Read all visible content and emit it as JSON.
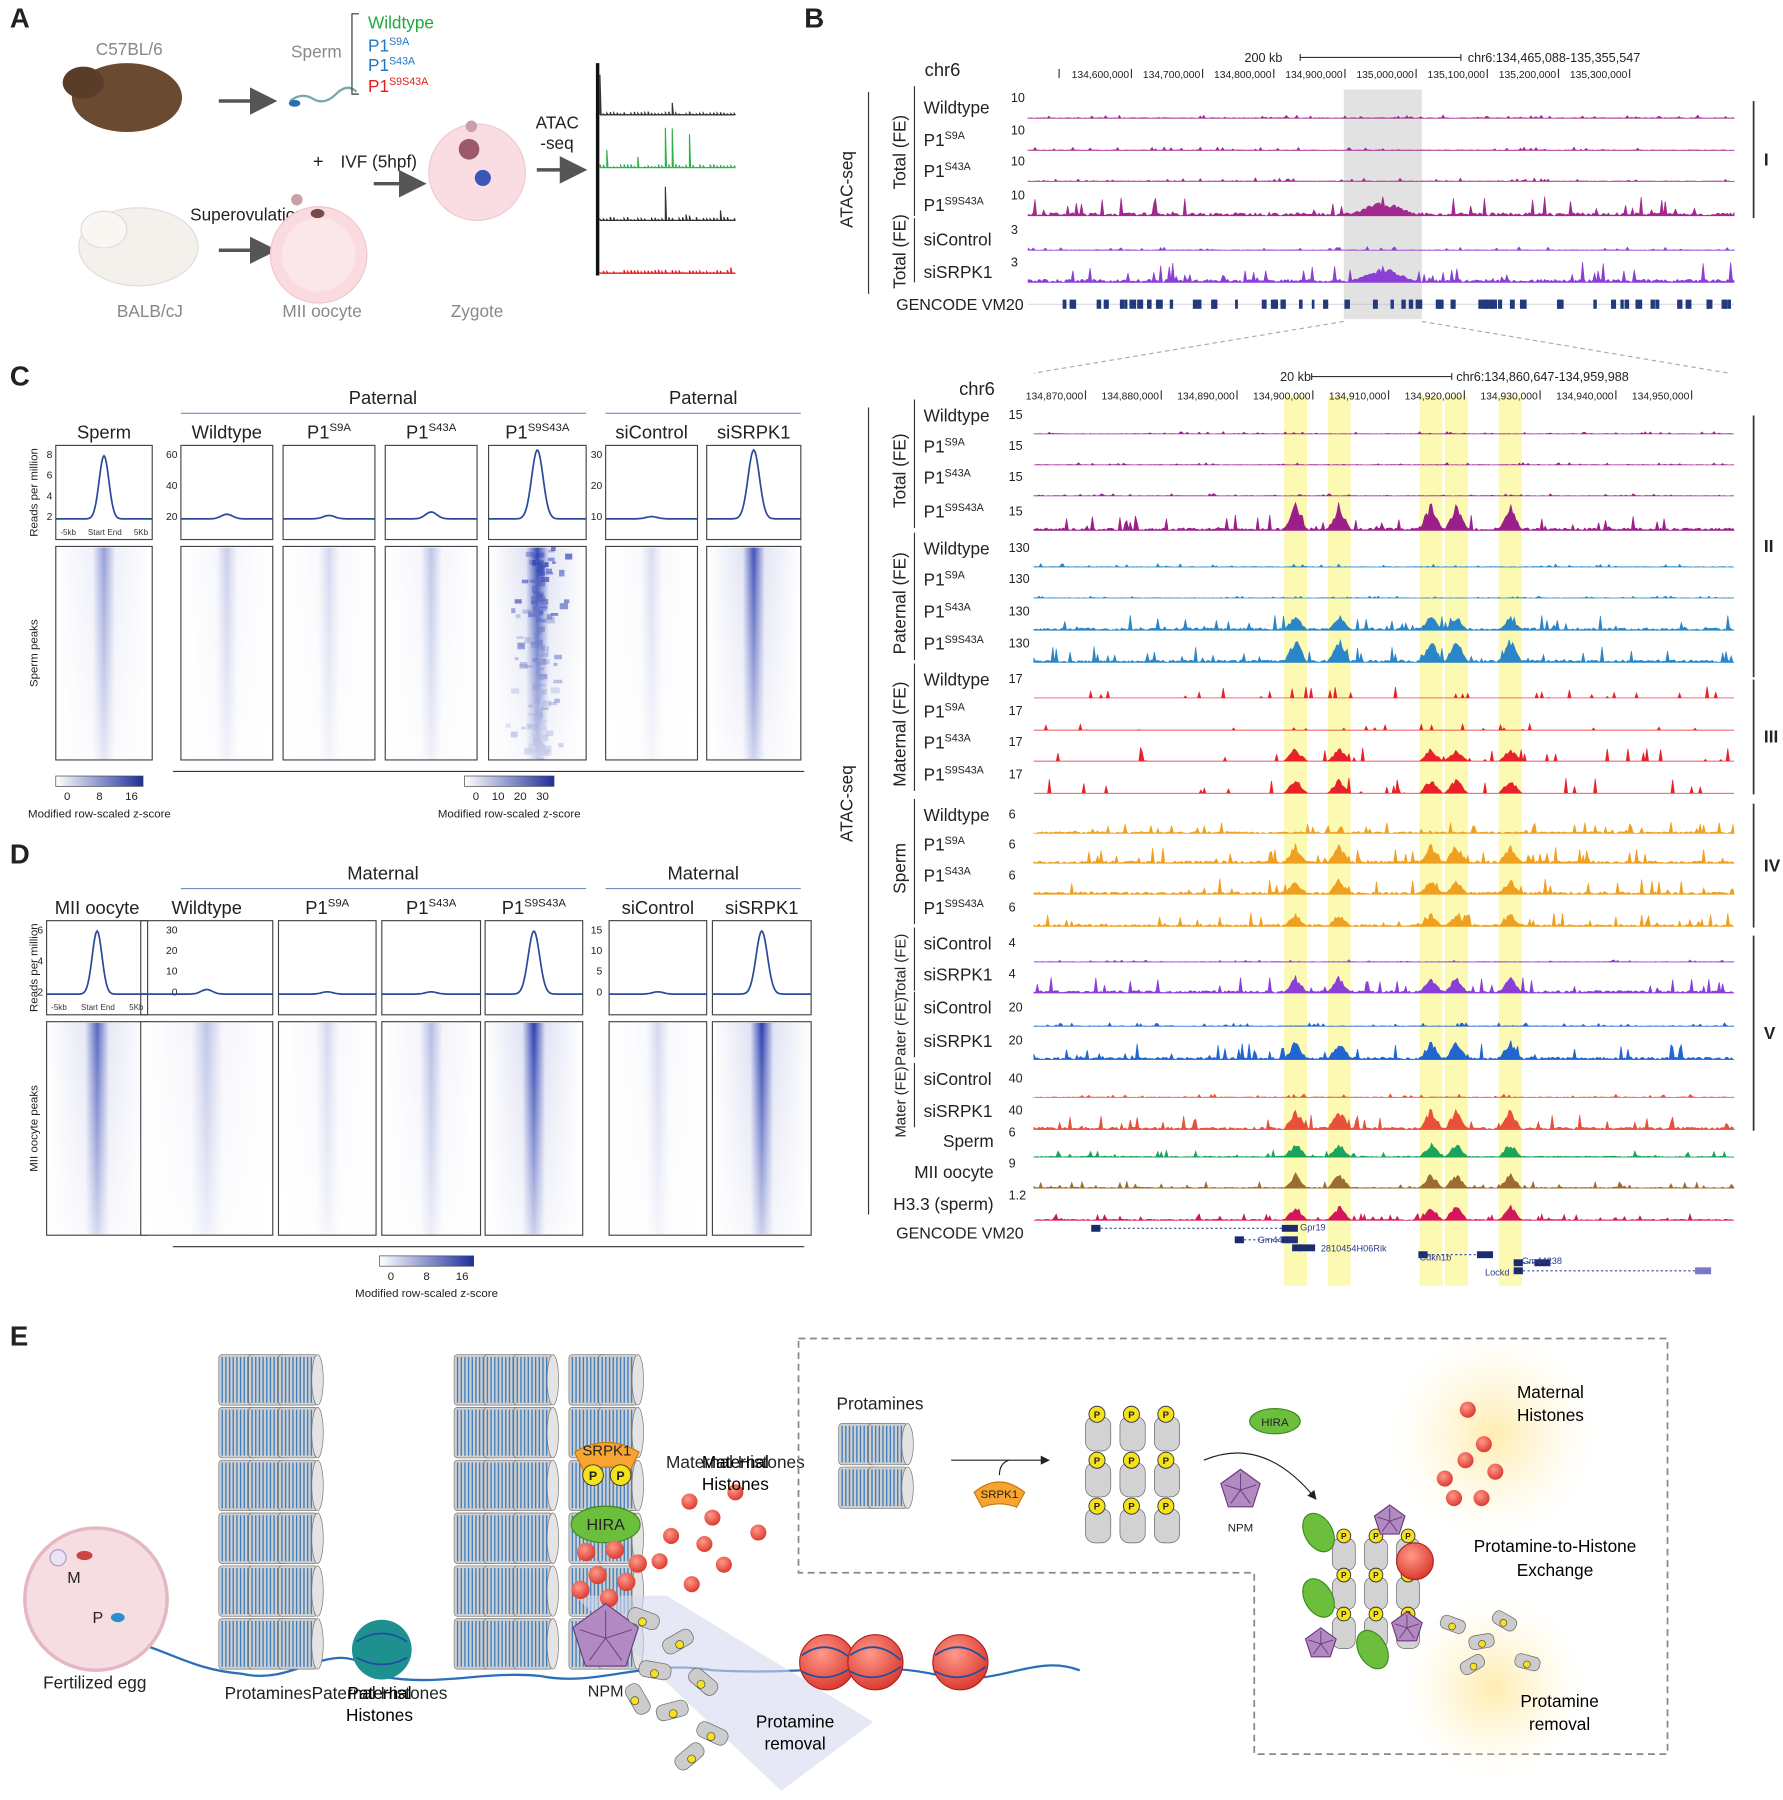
{
  "panel_labels": [
    "A",
    "B",
    "C",
    "D",
    "E"
  ],
  "panel_a": {
    "mouse_1": "C57BL/6",
    "sperm": "Sperm",
    "mouse_2": "BALB/cJ",
    "superovulation": "Superovulation",
    "oocyte": "MII oocyte",
    "zygote": "Zygote",
    "plus": "+",
    "ivf": "IVF (5hpf)",
    "atac": [
      "ATAC",
      "-seq"
    ],
    "genotypes": [
      {
        "text": "Wildtype"
      },
      {
        "text": "P1",
        "sup": "S9A"
      },
      {
        "text": "P1",
        "sup": "S43A"
      },
      {
        "text": "P1",
        "sup": "S9S43A"
      }
    ]
  },
  "panel_b": {
    "assay_top": "ATAC-seq",
    "assay_bottom": "ATAC-seq",
    "top": {
      "chrom": "chr6",
      "scale": "200 kb",
      "coords": "chr6:134,465,088-135,355,547",
      "ticks": [
        "134,600,000",
        "134,700,000",
        "134,800,000",
        "134,900,000",
        "135,000,000",
        "135,100,000",
        "135,200,000",
        "135,300,000"
      ],
      "groups": [
        {
          "label": "Total (FE)",
          "color": "#a3288f",
          "tracks": [
            {
              "name": {
                "text": "Wildtype"
              },
              "max": "10"
            },
            {
              "name": {
                "text": "P1",
                "sup": "S9A"
              },
              "max": "10"
            },
            {
              "name": {
                "text": "P1",
                "sup": "S43A"
              },
              "max": "10"
            },
            {
              "name": {
                "text": "P1",
                "sup": "S9S43A"
              },
              "max": "10"
            }
          ]
        },
        {
          "label": "Total (FE)",
          "color": "#8a3fd6",
          "tracks": [
            {
              "name": {
                "text": "siControl"
              },
              "max": "3"
            },
            {
              "name": {
                "text": "siSRPK1"
              },
              "max": "3"
            }
          ]
        }
      ],
      "roman": "I",
      "gencode": "GENCODE VM20"
    },
    "bottom": {
      "chrom": "chr6",
      "scale": "20 kb",
      "coords": "chr6:134,860,647-134,959,988",
      "ticks": [
        "134,870,000",
        "134,880,000",
        "134,890,000",
        "134,900,000",
        "134,910,000",
        "134,920,000",
        "134,930,000",
        "134,940,000",
        "134,950,000"
      ],
      "groups": [
        {
          "label": "Total (FE)",
          "color": "#9b1f8a",
          "tracks": [
            {
              "name": {
                "text": "Wildtype"
              },
              "max": "15"
            },
            {
              "name": {
                "text": "P1",
                "sup": "S9A"
              },
              "max": "15"
            },
            {
              "name": {
                "text": "P1",
                "sup": "S43A"
              },
              "max": "15"
            },
            {
              "name": {
                "text": "P1",
                "sup": "S9S43A"
              },
              "max": "15"
            }
          ]
        },
        {
          "label": "Paternal (FE)",
          "color": "#2a86c8",
          "tracks": [
            {
              "name": {
                "text": "Wildtype"
              },
              "max": "130"
            },
            {
              "name": {
                "text": "P1",
                "sup": "S9A"
              },
              "max": "130"
            },
            {
              "name": {
                "text": "P1",
                "sup": "S43A"
              },
              "max": "130"
            },
            {
              "name": {
                "text": "P1",
                "sup": "S9S43A"
              },
              "max": "130"
            }
          ]
        },
        {
          "label": "Maternal (FE)",
          "color": "#e8212a",
          "tracks": [
            {
              "name": {
                "text": "Wildtype"
              },
              "max": "17"
            },
            {
              "name": {
                "text": "P1",
                "sup": "S9A"
              },
              "max": "17"
            },
            {
              "name": {
                "text": "P1",
                "sup": "S43A"
              },
              "max": "17"
            },
            {
              "name": {
                "text": "P1",
                "sup": "S9S43A"
              },
              "max": "17"
            }
          ]
        },
        {
          "label": "Sperm",
          "color": "#f0a020",
          "tracks": [
            {
              "name": {
                "text": "Wildtype"
              },
              "max": "6"
            },
            {
              "name": {
                "text": "P1",
                "sup": "S9A"
              },
              "max": "6"
            },
            {
              "name": {
                "text": "P1",
                "sup": "S43A"
              },
              "max": "6"
            },
            {
              "name": {
                "text": "P1",
                "sup": "S9S43A"
              },
              "max": "6"
            }
          ]
        },
        {
          "label": "Total (FE)",
          "color": "#8a3fd6",
          "tracks": [
            {
              "name": {
                "text": "siControl"
              },
              "max": "4"
            },
            {
              "name": {
                "text": "siSRPK1"
              },
              "max": "4"
            }
          ]
        },
        {
          "label": "Pater (FE)",
          "color": "#2166d0",
          "tracks": [
            {
              "name": {
                "text": "siControl"
              },
              "max": "20"
            },
            {
              "name": {
                "text": "siSRPK1"
              },
              "max": "20"
            }
          ]
        },
        {
          "label": "Mater (FE)",
          "color": "#e8503a",
          "tracks": [
            {
              "name": {
                "text": "siControl"
              },
              "max": "40"
            },
            {
              "name": {
                "text": "siSRPK1"
              },
              "max": "40"
            }
          ]
        }
      ],
      "references": [
        {
          "name": "Sperm",
          "max": "6",
          "color": "#1aa35a"
        },
        {
          "name": "MII oocyte",
          "max": "9",
          "color": "#9c6b30"
        },
        {
          "name": "H3.3 (sperm)",
          "max": "1.2",
          "color": "#d4165a"
        }
      ],
      "roman": [
        "II",
        "III",
        "IV",
        "V"
      ],
      "gencode": "GENCODE VM20",
      "genes": [
        "Gpr19",
        "Gm44366",
        "2810454H06Rik",
        "Cdkn1b",
        "Lockd",
        "Gm44238"
      ]
    }
  },
  "panel_c": {
    "first_title": "Sperm",
    "group_titles": [
      "Paternal",
      "Paternal"
    ],
    "columns": [
      {
        "text": "Wildtype"
      },
      {
        "text": "P1",
        "sup": "S9A"
      },
      {
        "text": "P1",
        "sup": "S43A"
      },
      {
        "text": "P1",
        "sup": "S9S43A"
      },
      {
        "text": "siControl"
      },
      {
        "text": "siSRPK1"
      }
    ],
    "y_label": "Reads per million",
    "row_label": "Sperm peaks",
    "yticks_first": [
      "2",
      "4",
      "6",
      "8"
    ],
    "yticks_group1": [
      "20",
      "40",
      "60"
    ],
    "yticks_group2": [
      "10",
      "20",
      "30"
    ],
    "xticks": [
      "-5kb",
      "Start",
      "End",
      "5Kb"
    ],
    "colorbar_1": {
      "ticks": [
        "0",
        "8",
        "16"
      ],
      "title": "Modified row-scaled z-score"
    },
    "colorbar_2": {
      "ticks": [
        "0",
        "10",
        "20",
        "30"
      ],
      "title": "Modified row-scaled z-score"
    }
  },
  "panel_d": {
    "first_title": "MII oocyte",
    "group_titles": [
      "Maternal",
      "Maternal"
    ],
    "columns": [
      {
        "text": "Wildtype"
      },
      {
        "text": "P1",
        "sup": "S9A"
      },
      {
        "text": "P1",
        "sup": "S43A"
      },
      {
        "text": "P1",
        "sup": "S9S43A"
      },
      {
        "text": "siControl"
      },
      {
        "text": "siSRPK1"
      }
    ],
    "y_label": "Reads per million",
    "row_label": "MII oocyte peaks",
    "yticks_first": [
      "2",
      "4",
      "6"
    ],
    "yticks_group1": [
      "0",
      "10",
      "20",
      "30"
    ],
    "yticks_group2": [
      "0",
      "5",
      "10",
      "15"
    ],
    "xticks": [
      "-5kb",
      "Start",
      "End",
      "5Kb"
    ],
    "colorbar": {
      "ticks": [
        "0",
        "8",
        "16"
      ],
      "title": "Modified row-scaled z-score"
    }
  },
  "panel_e": {
    "egg": "Fertilized egg",
    "m": "M",
    "p": "P",
    "protamines": "Protamines",
    "paternal_histones": "Paternal Histones",
    "srpk1": "SRPK1",
    "hira": "HIRA",
    "maternal_histones": "Maternal Histones",
    "npm": "NPM",
    "protamine_removal": "Protamine removal",
    "phospho": "P",
    "inset": {
      "protamines": "Protamines",
      "srpk1": "SRPK1",
      "hira": "HIRA",
      "npm": "NPM",
      "maternal_histones": "Maternal Histones",
      "exchange": "Protamine-to-Histone Exchange",
      "protamine_removal": "Protamine removal"
    }
  }
}
